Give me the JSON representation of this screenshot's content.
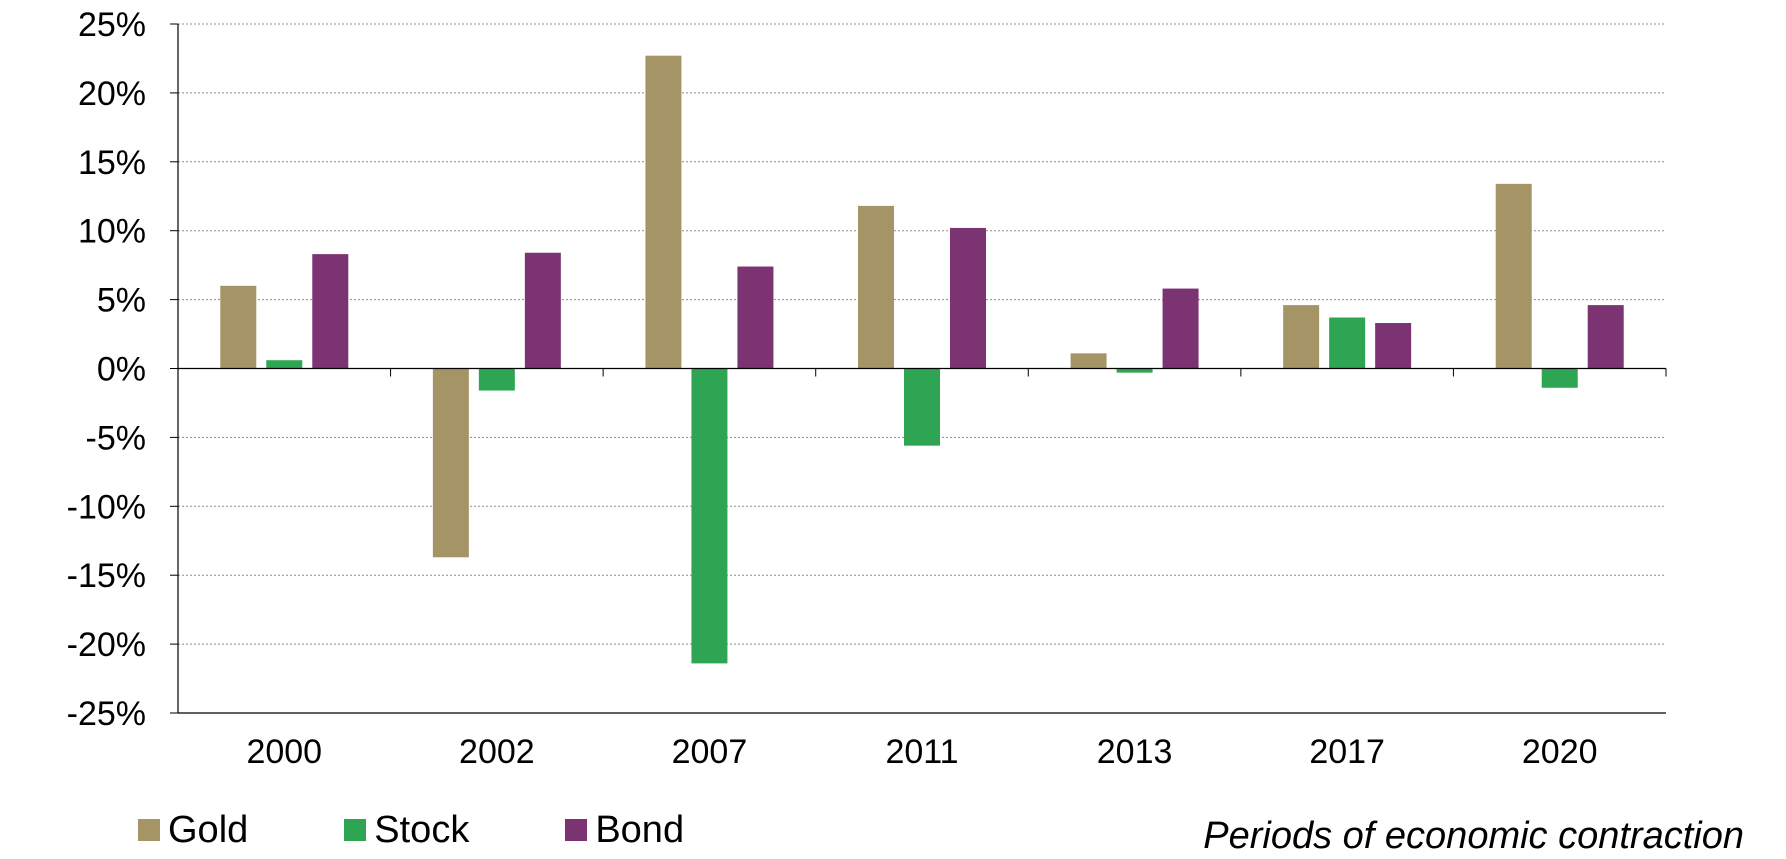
{
  "chart_data": {
    "type": "bar",
    "title": "",
    "xlabel": "Periods of economic contraction",
    "ylabel": "",
    "ylim": [
      -25,
      25
    ],
    "ytick_step": 5,
    "ytick_suffix": "%",
    "grid": true,
    "legend_position": "bottom-left",
    "categories": [
      "2000",
      "2002",
      "2007",
      "2011",
      "2013",
      "2017",
      "2020"
    ],
    "series": [
      {
        "name": "Gold",
        "color": "#A59465",
        "values": [
          6.0,
          -13.7,
          22.7,
          11.8,
          1.1,
          4.6,
          13.4
        ]
      },
      {
        "name": "Stock",
        "color": "#2EA553",
        "values": [
          0.6,
          -1.6,
          -21.4,
          -5.6,
          -0.3,
          3.7,
          -1.4
        ]
      },
      {
        "name": "Bond",
        "color": "#7B3371",
        "values": [
          8.3,
          8.4,
          7.4,
          10.2,
          5.8,
          3.3,
          4.6
        ]
      }
    ]
  }
}
